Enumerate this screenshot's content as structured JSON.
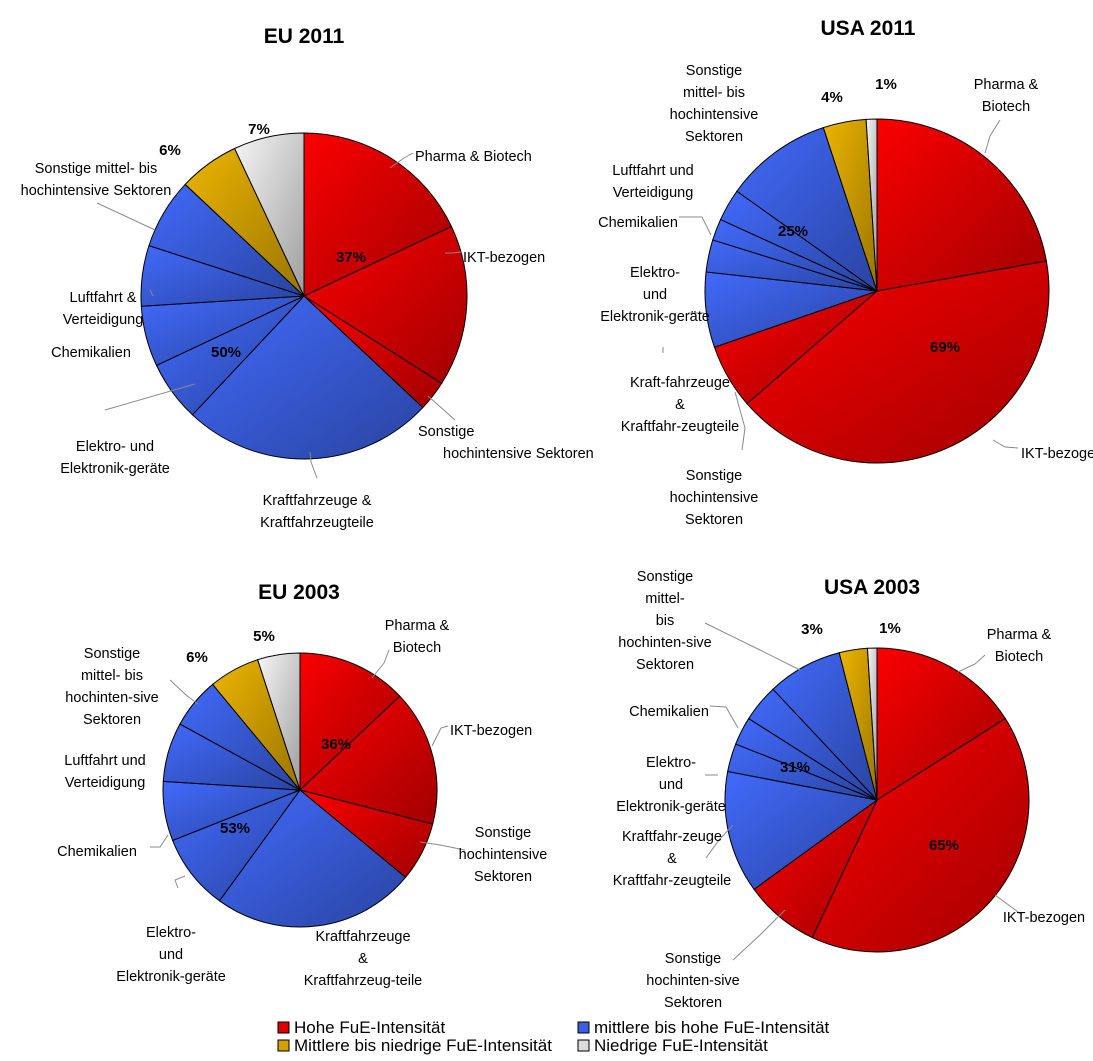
{
  "colors": {
    "hohe": "#e00000",
    "mittel_hohe": "#3a5fe0",
    "mittel_niedrig": "#d4a200",
    "niedrig": "#dcdcdc"
  },
  "legend": [
    {
      "key": "hohe",
      "label": "Hohe FuE-Intensität"
    },
    {
      "key": "mittel_hohe",
      "label": "mittlere bis hohe FuE-Intensität"
    },
    {
      "key": "mittel_niedrig",
      "label": "Mittlere bis niedrige FuE-Intensität"
    },
    {
      "key": "niedrig",
      "label": "Niedrige FuE-Intensität"
    }
  ],
  "chart_data": [
    {
      "type": "pie",
      "title": "EU 2011",
      "slices": [
        {
          "label": "Pharma & Biotech",
          "value": 18,
          "group": "hohe"
        },
        {
          "label": "IKT-bezogen",
          "value": 16,
          "group": "hohe"
        },
        {
          "label": "Sonstige hochintensive Sektoren",
          "value": 3,
          "group": "hohe"
        },
        {
          "label": "Kraftfahrzeuge & Kraftfahrzeugteile",
          "value": 25,
          "group": "mittel_hohe"
        },
        {
          "label": "Elektro- und Elektronik-geräte",
          "value": 6,
          "group": "mittel_hohe"
        },
        {
          "label": "Chemikalien",
          "value": 6,
          "group": "mittel_hohe"
        },
        {
          "label": "Luftfahrt & Verteidigung",
          "value": 6,
          "group": "mittel_hohe"
        },
        {
          "label": "Sonstige mittel- bis hochintensive Sektoren",
          "value": 7,
          "group": "mittel_hohe"
        },
        {
          "label": "",
          "value": 6,
          "group": "mittel_niedrig"
        },
        {
          "label": "",
          "value": 7,
          "group": "niedrig"
        }
      ],
      "group_labels": [
        {
          "text": "37%",
          "group": "hohe"
        },
        {
          "text": "50%",
          "group": "mittel_hohe"
        },
        {
          "text": "6%",
          "group": "mittel_niedrig"
        },
        {
          "text": "7%",
          "group": "niedrig"
        }
      ]
    },
    {
      "type": "pie",
      "title": "USA 2011",
      "slices": [
        {
          "label": "Pharma & Biotech",
          "value": 22,
          "group": "hohe"
        },
        {
          "label": "IKT-bezogen",
          "value": 41,
          "group": "hohe"
        },
        {
          "label": "Sonstige hochintensive Sektoren",
          "value": 6,
          "group": "hohe"
        },
        {
          "label": "Kraft-fahrzeuge & Kraftfahr-zeugteile",
          "value": 7,
          "group": "mittel_hohe"
        },
        {
          "label": "Elektro- und Elektronik-geräte",
          "value": 3,
          "group": "mittel_hohe"
        },
        {
          "label": "Chemikalien",
          "value": 2,
          "group": "mittel_hohe"
        },
        {
          "label": "Luftfahrt und Verteidigung",
          "value": 3,
          "group": "mittel_hohe"
        },
        {
          "label": "Sonstige mittel- bis hochintensive Sektoren",
          "value": 10,
          "group": "mittel_hohe"
        },
        {
          "label": "",
          "value": 4,
          "group": "mittel_niedrig"
        },
        {
          "label": "",
          "value": 1,
          "group": "niedrig"
        }
      ],
      "group_labels": [
        {
          "text": "69%",
          "group": "hohe"
        },
        {
          "text": "25%",
          "group": "mittel_hohe"
        },
        {
          "text": "4%",
          "group": "mittel_niedrig"
        },
        {
          "text": "1%",
          "group": "niedrig"
        }
      ]
    },
    {
      "type": "pie",
      "title": "EU 2003",
      "slices": [
        {
          "label": "Pharma & Biotech",
          "value": 13,
          "group": "hohe"
        },
        {
          "label": "IKT-bezogen",
          "value": 16,
          "group": "hohe"
        },
        {
          "label": "Sonstige hochintensive Sektoren",
          "value": 7,
          "group": "hohe"
        },
        {
          "label": "Kraftfahrzeuge & Kraftfahrzeug-teile",
          "value": 24,
          "group": "mittel_hohe"
        },
        {
          "label": "Elektro- und Elektronik-geräte",
          "value": 9,
          "group": "mittel_hohe"
        },
        {
          "label": "Chemikalien",
          "value": 7,
          "group": "mittel_hohe"
        },
        {
          "label": "Luftfahrt und Verteidigung",
          "value": 7,
          "group": "mittel_hohe"
        },
        {
          "label": "Sonstige mittel- bis hochinten-sive Sektoren",
          "value": 6,
          "group": "mittel_hohe"
        },
        {
          "label": "",
          "value": 6,
          "group": "mittel_niedrig"
        },
        {
          "label": "",
          "value": 5,
          "group": "niedrig"
        }
      ],
      "group_labels": [
        {
          "text": "36%",
          "group": "hohe"
        },
        {
          "text": "53%",
          "group": "mittel_hohe"
        },
        {
          "text": "6%",
          "group": "mittel_niedrig"
        },
        {
          "text": "5%",
          "group": "niedrig"
        }
      ]
    },
    {
      "type": "pie",
      "title": "USA 2003",
      "slices": [
        {
          "label": "Pharma & Biotech",
          "value": 16,
          "group": "hohe"
        },
        {
          "label": "IKT-bezogen",
          "value": 41,
          "group": "hohe"
        },
        {
          "label": "Sonstige hochinten-sive Sektoren",
          "value": 8,
          "group": "hohe"
        },
        {
          "label": "Kraftfahr-zeuge & Kraftfahr-zeugteile",
          "value": 13,
          "group": "mittel_hohe"
        },
        {
          "label": "Elektro- und Elektronik-geräte",
          "value": 3,
          "group": "mittel_hohe"
        },
        {
          "label": "Chemikalien",
          "value": 3,
          "group": "mittel_hohe"
        },
        {
          "label": "",
          "value": 4,
          "group": "mittel_hohe"
        },
        {
          "label": "Sonstige mittel- bis hochinten-sive Sektoren",
          "value": 8,
          "group": "mittel_hohe"
        },
        {
          "label": "",
          "value": 3,
          "group": "mittel_niedrig"
        },
        {
          "label": "",
          "value": 1,
          "group": "niedrig"
        }
      ],
      "group_labels": [
        {
          "text": "65%",
          "group": "hohe"
        },
        {
          "text": "31%",
          "group": "mittel_hohe"
        },
        {
          "text": "3%",
          "group": "mittel_niedrig"
        },
        {
          "text": "1%",
          "group": "niedrig"
        }
      ]
    }
  ]
}
